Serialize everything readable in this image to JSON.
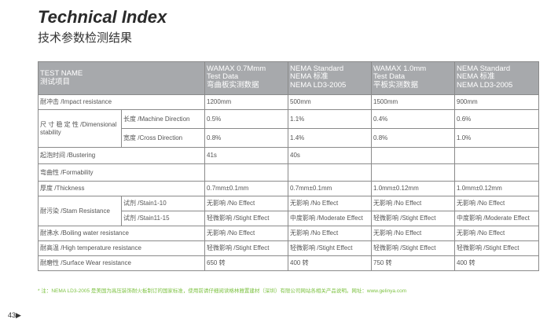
{
  "title": "Technical Index",
  "subtitle": "技术参数检测结果",
  "header": {
    "test_name": "TEST NAME",
    "test_name_cn": "测试项目",
    "cols": [
      [
        "WAMAX 0.7Mmm",
        "Test Data",
        "弯曲板实测数据"
      ],
      [
        "NEMA Standard",
        "NEMA 标准",
        "NEMA LD3-2005"
      ],
      [
        "WAMAX 1.0mm",
        "Test Data",
        "平板实测数据"
      ],
      [
        "NEMA Standard",
        "NEMA 标准",
        "NEMA LD3-2005"
      ]
    ]
  },
  "rows": {
    "impact": {
      "name": "耐冲击 /Impact resistance",
      "v": [
        "1200mm",
        "500mm",
        "1500mm",
        "900mm"
      ]
    },
    "dim": {
      "name": "尺 寸 稳 定 性 /Dimensional stability",
      "sub1": "长度 /Machine Direction",
      "v1": [
        "0.5%",
        "1.1%",
        "0.4%",
        "0.6%"
      ],
      "sub2": "宽度 /Cross Direction",
      "v2": [
        "0.8%",
        "1.4%",
        "0.8%",
        "1.0%"
      ]
    },
    "blister": {
      "name": "起泡时间 /Bustering",
      "v": [
        "41s",
        "40s",
        "",
        ""
      ]
    },
    "form": {
      "name": "弯曲性 /Formability",
      "v": [
        "",
        "",
        "",
        ""
      ]
    },
    "thick": {
      "name": "厚度 /Thickness",
      "v": [
        "0.7mm±0.1mm",
        "0.7mm±0.1mm",
        "1.0mm±0.12mm",
        "1.0mm±0.12mm"
      ]
    },
    "stain": {
      "name": "耐污染 /Stam Resistance",
      "sub1": "试剂 /Stain1-10",
      "v1": [
        "无影响 /No Effect",
        "无影响 /No Effect",
        "无影响 /No Effect",
        "无影响 /No Effect"
      ],
      "sub2": "试剂 /Stain11-15",
      "v2": [
        "轻微影响 /Stight Effect",
        "中度影响 /Moderate Effect",
        "轻微影响 /Stight Effect",
        "中度影响 /Moderate Effect"
      ]
    },
    "boil": {
      "name": "耐沸水 /Boiling water resistance",
      "v": [
        "无影响 /No Effect",
        "无影响 /No Effect",
        "无影响 /No Effect",
        "无影响 /No Effect"
      ]
    },
    "hot": {
      "name": "耐高温 /High temperature resistance",
      "v": [
        "轻微影响 /Stight Effect",
        "轻微影响 /Stight Effect",
        "轻微影响 /Stight Effect",
        "轻微影响 /Stight Effect"
      ]
    },
    "wear": {
      "name": "耐磨性 /Surface Wear resistance",
      "v": [
        "650 转",
        "400 转",
        "750 转",
        "400 转"
      ]
    }
  },
  "note": "* 注：NEMA LD3-2005 是美国为高压装饰耐火板制订的国家标准，使用前请仔细阅读格林雅置建材（深圳）有限公司网站各相关产品说明。网址：www.gelinya.com",
  "page_number": "43▶",
  "colors": {
    "header_bg": "#a7a9ac",
    "note": "#7dc242"
  }
}
